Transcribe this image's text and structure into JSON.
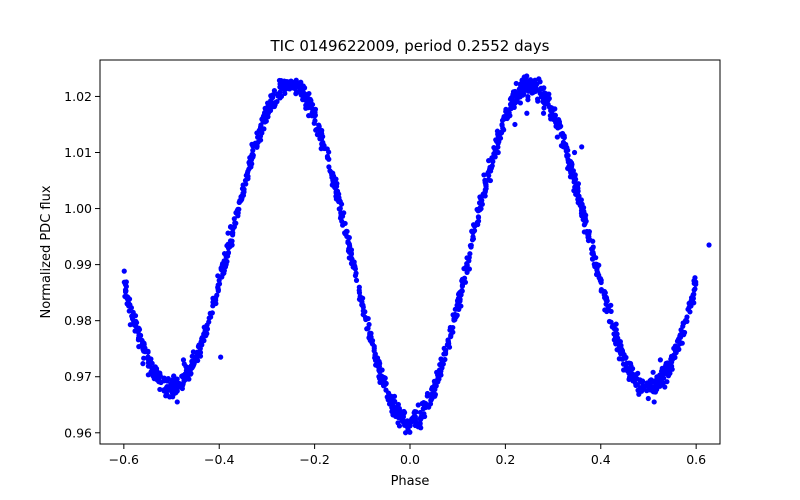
{
  "chart_data": {
    "type": "scatter",
    "title": "TIC 0149622009, period 0.2552 days",
    "xlabel": "Phase",
    "ylabel": "Normalized PDC flux",
    "xlim": [
      -0.65,
      0.65
    ],
    "ylim": [
      0.958,
      1.0265
    ],
    "xticks": [
      -0.6,
      -0.4,
      -0.2,
      0.0,
      0.2,
      0.4,
      0.6
    ],
    "xtick_labels": [
      "−0.6",
      "−0.4",
      "−0.2",
      "0.0",
      "0.2",
      "0.4",
      "0.6"
    ],
    "yticks": [
      0.96,
      0.97,
      0.98,
      0.99,
      1.0,
      1.01,
      1.02
    ],
    "ytick_labels": [
      "0.96",
      "0.97",
      "0.98",
      "0.99",
      "1.00",
      "1.01",
      "1.02"
    ],
    "grid": false,
    "marker_color": "#0000ff",
    "phase_range": [
      -0.6,
      0.6
    ],
    "light_curve_model": {
      "primary_min": {
        "phase": 0.0,
        "flux": 0.962
      },
      "secondary_min": {
        "phase": 0.5,
        "flux": 0.968
      },
      "max_flux": 1.022,
      "scatter": 0.0009
    },
    "outliers": [
      {
        "x": -0.488,
        "y": 0.9655
      },
      {
        "x": 0.512,
        "y": 0.9655
      },
      {
        "x": -0.345,
        "y": 1.005
      },
      {
        "x": -0.373,
        "y": 0.9935
      },
      {
        "x": -0.403,
        "y": 0.988
      },
      {
        "x": -0.397,
        "y": 0.9735
      },
      {
        "x": 0.155,
        "y": 1.006
      },
      {
        "x": 0.185,
        "y": 1.01
      },
      {
        "x": 0.22,
        "y": 1.015
      },
      {
        "x": 0.245,
        "y": 1.017
      },
      {
        "x": 0.28,
        "y": 1.017
      },
      {
        "x": 0.295,
        "y": 1.016
      },
      {
        "x": 0.345,
        "y": 1.01
      },
      {
        "x": 0.36,
        "y": 1.011
      },
      {
        "x": 0.627,
        "y": 0.9935
      },
      {
        "x": -0.475,
        "y": 0.973
      },
      {
        "x": 0.525,
        "y": 0.973
      }
    ]
  }
}
